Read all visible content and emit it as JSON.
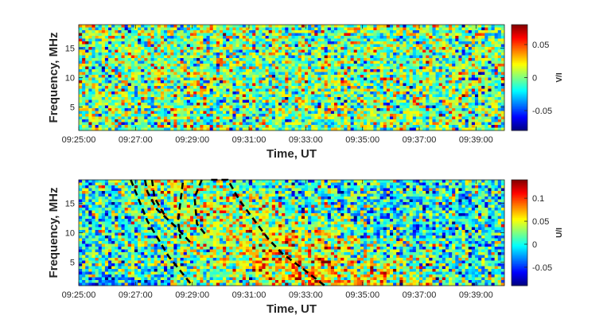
{
  "chart_data": [
    {
      "type": "heatmap",
      "xlabel": "Time, UT",
      "ylabel": "Frequency, MHz",
      "colorbar_label": "V/I",
      "xlim": [
        "09:25:00",
        "09:40:00"
      ],
      "ylim": [
        1,
        19
      ],
      "x_ticks": [
        "09:25:00",
        "09:27:00",
        "09:29:00",
        "09:31:00",
        "09:33:00",
        "09:35:00",
        "09:37:00",
        "09:39:00"
      ],
      "y_ticks": [
        5,
        10,
        15
      ],
      "clim": [
        -0.08,
        0.08
      ],
      "colorbar_ticks": [
        {
          "value": 0.05,
          "label": "0.05"
        },
        {
          "value": 0,
          "label": "0"
        },
        {
          "value": -0.05,
          "label": "-0.05"
        }
      ],
      "colormap": "jet",
      "grid": false,
      "pattern": "noise",
      "seed": 7,
      "overlays": []
    },
    {
      "type": "heatmap",
      "xlabel": "Time, UT",
      "ylabel": "Frequency, MHz",
      "colorbar_label": "U/I",
      "xlim": [
        "09:25:00",
        "09:40:00"
      ],
      "ylim": [
        1,
        19
      ],
      "x_ticks": [
        "09:25:00",
        "09:27:00",
        "09:29:00",
        "09:31:00",
        "09:33:00",
        "09:35:00",
        "09:37:00",
        "09:39:00"
      ],
      "y_ticks": [
        5,
        10,
        15
      ],
      "clim": [
        -0.09,
        0.14
      ],
      "colorbar_ticks": [
        {
          "value": 0.1,
          "label": "0.1"
        },
        {
          "value": 0.05,
          "label": "0.05"
        },
        {
          "value": 0,
          "label": "0"
        },
        {
          "value": -0.05,
          "label": "-0.05"
        }
      ],
      "colormap": "jet",
      "grid": false,
      "pattern": "burst",
      "seed": 13,
      "overlays": [
        {
          "name": "drift-1",
          "style": "dashed",
          "color": "#000000",
          "points": [
            [
              "09:26:50",
              19
            ],
            [
              "09:27:00",
              17
            ],
            [
              "09:27:25",
              12
            ],
            [
              "09:28:10",
              6
            ],
            [
              "09:29:00",
              1
            ]
          ]
        },
        {
          "name": "drift-2",
          "style": "dashed",
          "color": "#000000",
          "points": [
            [
              "09:27:20",
              19
            ],
            [
              "09:27:25",
              17
            ],
            [
              "09:27:45",
              14
            ],
            [
              "09:28:25",
              11
            ],
            [
              "09:29:00",
              8
            ]
          ]
        },
        {
          "name": "drift-3",
          "style": "dashed",
          "color": "#000000",
          "points": [
            [
              "09:27:35",
              19
            ],
            [
              "09:27:40",
              16
            ],
            [
              "09:28:05",
              12.5
            ]
          ]
        },
        {
          "name": "drift-4",
          "style": "dashed",
          "color": "#000000",
          "points": [
            [
              "09:28:40",
              18.5
            ],
            [
              "09:28:30",
              12
            ],
            [
              "09:28:35",
              9
            ]
          ]
        },
        {
          "name": "drift-5",
          "style": "dashed",
          "color": "#000000",
          "points": [
            [
              "09:29:20",
              19
            ],
            [
              "09:29:05",
              16
            ],
            [
              "09:29:10",
              11.5
            ],
            [
              "09:29:30",
              9.5
            ]
          ]
        },
        {
          "name": "drift-6",
          "style": "dashed",
          "color": "#000000",
          "points": [
            [
              "09:29:40",
              19
            ],
            [
              "09:30:15",
              19
            ],
            [
              "09:30:40",
              15.5
            ],
            [
              "09:31:40",
              9
            ],
            [
              "09:32:10",
              6.5
            ],
            [
              "09:33:00",
              3.5
            ],
            [
              "09:33:40",
              1
            ]
          ]
        }
      ]
    }
  ]
}
